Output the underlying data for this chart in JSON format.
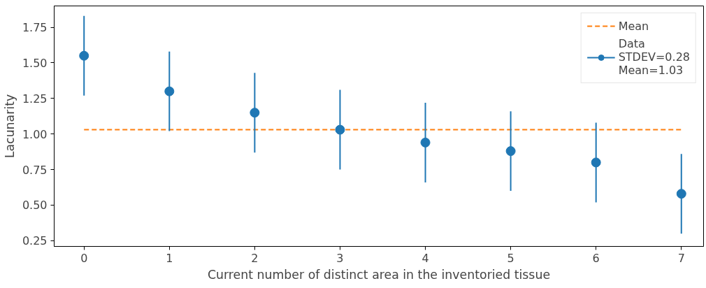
{
  "chart_data": {
    "type": "scatter",
    "xlabel": "Current number of distinct area in the inventoried tissue",
    "ylabel": "Lacunarity",
    "xlim": [
      -0.35,
      7.26
    ],
    "xticks": [
      0,
      1,
      2,
      3,
      4,
      5,
      6,
      7
    ],
    "ylim": [
      0.21,
      1.9
    ],
    "yticks": [
      0.25,
      {
        "value": 0.5,
        "label": "0.50"
      },
      0.75,
      {
        "value": 1,
        "label": "1.00"
      },
      1.25,
      {
        "value": 1.5,
        "label": "1.50"
      },
      1.75
    ],
    "legend": "top right",
    "grid": false,
    "series": [
      {
        "type": "line",
        "name": "Mean",
        "color": "#ff7f0e",
        "line_style": "dashed",
        "x": [
          0,
          7
        ],
        "values": [
          1.03,
          1.03
        ]
      },
      {
        "name": "Data\nSTDEV=0.28\nMean=1.03",
        "color": "#1f77b4",
        "marker": "circle",
        "x": [
          0,
          1,
          2,
          3,
          4,
          5,
          6,
          7
        ],
        "values": [
          1.55,
          1.3,
          1.15,
          1.03,
          0.94,
          0.88,
          0.8,
          0.58
        ],
        "errors": [
          0.28,
          0.28,
          0.28,
          0.28,
          0.28,
          0.28,
          0.28,
          0.28
        ]
      }
    ]
  }
}
